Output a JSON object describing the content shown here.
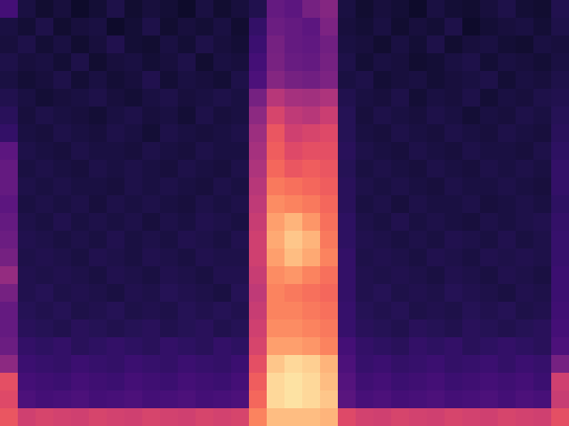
{
  "chart_data": {
    "type": "heatmap",
    "tick_labels": false,
    "zlim": [
      0,
      100
    ],
    "cells": [
      [
        22,
        12,
        9,
        11,
        8,
        10,
        13,
        9,
        11,
        10,
        8,
        12,
        9,
        11,
        14,
        30,
        28,
        34,
        38,
        12,
        9,
        11,
        10,
        8,
        12,
        10,
        9,
        11,
        13,
        10,
        9,
        14
      ],
      [
        12,
        10,
        13,
        9,
        11,
        12,
        8,
        10,
        13,
        9,
        11,
        10,
        12,
        9,
        18,
        32,
        30,
        28,
        36,
        11,
        10,
        12,
        9,
        11,
        10,
        13,
        8,
        10,
        11,
        12,
        10,
        13
      ],
      [
        11,
        13,
        10,
        12,
        9,
        11,
        14,
        10,
        9,
        12,
        10,
        13,
        11,
        10,
        20,
        34,
        30,
        29,
        33,
        12,
        11,
        9,
        12,
        10,
        13,
        9,
        11,
        12,
        10,
        9,
        12,
        11
      ],
      [
        13,
        11,
        12,
        10,
        13,
        9,
        11,
        12,
        10,
        11,
        13,
        9,
        12,
        11,
        22,
        35,
        31,
        30,
        34,
        13,
        10,
        12,
        11,
        9,
        10,
        12,
        13,
        10,
        12,
        11,
        10,
        12
      ],
      [
        12,
        10,
        11,
        13,
        10,
        12,
        10,
        11,
        14,
        10,
        12,
        11,
        10,
        13,
        24,
        38,
        34,
        33,
        36,
        12,
        13,
        10,
        11,
        12,
        10,
        11,
        12,
        13,
        10,
        12,
        11,
        13
      ],
      [
        14,
        12,
        10,
        11,
        12,
        13,
        11,
        10,
        12,
        13,
        11,
        12,
        13,
        12,
        34,
        50,
        46,
        45,
        48,
        14,
        12,
        11,
        13,
        10,
        12,
        11,
        13,
        10,
        12,
        11,
        13,
        14
      ],
      [
        16,
        11,
        13,
        12,
        11,
        10,
        12,
        13,
        11,
        12,
        10,
        13,
        11,
        12,
        40,
        58,
        52,
        50,
        55,
        15,
        11,
        13,
        12,
        11,
        13,
        12,
        10,
        12,
        11,
        13,
        12,
        15
      ],
      [
        18,
        12,
        11,
        13,
        12,
        11,
        13,
        12,
        10,
        13,
        12,
        11,
        12,
        13,
        44,
        64,
        56,
        58,
        60,
        15,
        12,
        11,
        13,
        12,
        11,
        13,
        12,
        11,
        13,
        12,
        11,
        16
      ],
      [
        28,
        13,
        12,
        11,
        13,
        12,
        12,
        11,
        13,
        12,
        11,
        13,
        12,
        12,
        46,
        66,
        60,
        62,
        62,
        16,
        13,
        12,
        11,
        13,
        12,
        11,
        13,
        12,
        12,
        11,
        13,
        17
      ],
      [
        30,
        12,
        13,
        12,
        11,
        13,
        12,
        13,
        12,
        11,
        13,
        12,
        11,
        13,
        48,
        68,
        64,
        66,
        64,
        15,
        12,
        13,
        12,
        11,
        13,
        12,
        11,
        13,
        12,
        13,
        12,
        18
      ],
      [
        30,
        13,
        12,
        13,
        12,
        12,
        11,
        13,
        12,
        13,
        12,
        11,
        13,
        12,
        50,
        72,
        70,
        68,
        66,
        16,
        13,
        12,
        13,
        12,
        11,
        13,
        12,
        12,
        13,
        12,
        11,
        18
      ],
      [
        28,
        12,
        13,
        12,
        13,
        11,
        13,
        12,
        13,
        12,
        11,
        13,
        12,
        13,
        52,
        76,
        74,
        72,
        68,
        16,
        12,
        13,
        11,
        13,
        12,
        12,
        13,
        11,
        12,
        13,
        12,
        17
      ],
      [
        30,
        13,
        12,
        14,
        12,
        13,
        12,
        13,
        11,
        13,
        12,
        14,
        13,
        12,
        54,
        80,
        84,
        78,
        70,
        17,
        13,
        12,
        14,
        12,
        13,
        12,
        11,
        13,
        12,
        13,
        14,
        18
      ],
      [
        32,
        14,
        13,
        12,
        13,
        12,
        14,
        12,
        13,
        12,
        14,
        13,
        12,
        14,
        56,
        82,
        88,
        84,
        72,
        17,
        14,
        13,
        12,
        13,
        12,
        14,
        13,
        12,
        14,
        12,
        13,
        19
      ],
      [
        34,
        13,
        14,
        13,
        12,
        14,
        13,
        12,
        14,
        13,
        12,
        14,
        13,
        13,
        56,
        80,
        86,
        82,
        74,
        18,
        13,
        14,
        13,
        12,
        14,
        13,
        12,
        14,
        13,
        14,
        13,
        19
      ],
      [
        42,
        14,
        13,
        14,
        13,
        12,
        14,
        13,
        12,
        14,
        13,
        12,
        14,
        14,
        54,
        76,
        78,
        74,
        70,
        18,
        14,
        13,
        14,
        13,
        12,
        14,
        13,
        12,
        14,
        13,
        12,
        20
      ],
      [
        34,
        14,
        15,
        13,
        14,
        13,
        12,
        14,
        13,
        15,
        14,
        13,
        12,
        15,
        52,
        74,
        72,
        70,
        68,
        18,
        14,
        15,
        13,
        14,
        13,
        15,
        14,
        13,
        12,
        14,
        13,
        20
      ],
      [
        30,
        15,
        14,
        15,
        13,
        14,
        15,
        13,
        14,
        13,
        15,
        14,
        15,
        14,
        54,
        74,
        74,
        72,
        70,
        19,
        15,
        14,
        15,
        13,
        14,
        13,
        15,
        14,
        15,
        13,
        14,
        21
      ],
      [
        30,
        16,
        15,
        14,
        16,
        15,
        14,
        15,
        16,
        14,
        15,
        16,
        14,
        15,
        56,
        76,
        76,
        74,
        72,
        19,
        16,
        15,
        14,
        16,
        15,
        14,
        16,
        15,
        14,
        15,
        16,
        22
      ],
      [
        32,
        18,
        17,
        18,
        16,
        17,
        18,
        17,
        16,
        18,
        17,
        16,
        18,
        17,
        58,
        80,
        80,
        78,
        74,
        22,
        18,
        17,
        16,
        18,
        17,
        18,
        16,
        17,
        18,
        17,
        16,
        24
      ],
      [
        40,
        20,
        19,
        18,
        20,
        19,
        18,
        20,
        19,
        18,
        20,
        19,
        18,
        20,
        62,
        88,
        92,
        90,
        84,
        24,
        19,
        20,
        18,
        19,
        20,
        18,
        19,
        20,
        18,
        20,
        19,
        34
      ],
      [
        62,
        22,
        21,
        20,
        22,
        21,
        20,
        22,
        21,
        20,
        22,
        21,
        20,
        22,
        66,
        92,
        94,
        92,
        86,
        26,
        21,
        22,
        20,
        21,
        22,
        20,
        21,
        22,
        21,
        22,
        20,
        56
      ],
      [
        60,
        24,
        22,
        23,
        24,
        22,
        23,
        24,
        22,
        23,
        24,
        22,
        23,
        24,
        68,
        92,
        94,
        92,
        88,
        27,
        23,
        24,
        22,
        23,
        24,
        22,
        23,
        24,
        22,
        24,
        23,
        54
      ],
      [
        64,
        56,
        58,
        57,
        56,
        58,
        57,
        56,
        58,
        57,
        56,
        58,
        57,
        58,
        74,
        86,
        86,
        86,
        84,
        60,
        57,
        56,
        58,
        57,
        56,
        58,
        57,
        56,
        58,
        57,
        56,
        62
      ]
    ]
  }
}
